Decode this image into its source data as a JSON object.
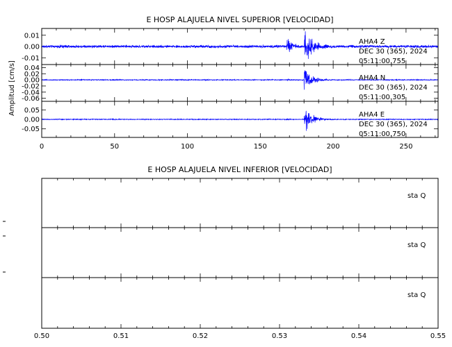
{
  "chart_data": [
    {
      "type": "line",
      "title": "E HOSP ALAJUELA NIVEL SUPERIOR [VELOCIDAD]",
      "ylabel": "Amplitud [cm/s]",
      "xlim": [
        0,
        272
      ],
      "x_ticks": [
        "0",
        "50",
        "100",
        "150",
        "200",
        "250"
      ],
      "x_tick_values": [
        0,
        50,
        100,
        150,
        200,
        250
      ],
      "series_color": "#0000ff",
      "panels": [
        {
          "channel": "AHA4   Z",
          "date": "DEC 30 (365), 2024",
          "time": "05:11:00.755",
          "ylim": [
            -0.016,
            0.016
          ],
          "y_ticks": [
            "0.01",
            "0.00",
            "-0.01"
          ],
          "y_tick_values": [
            0.01,
            0.0,
            -0.01
          ],
          "noise": 0.0008,
          "events": [
            {
              "t": 12,
              "amp": 0.001,
              "decay": 8
            },
            {
              "t": 168,
              "amp": 0.011,
              "decay": 3
            },
            {
              "t": 180,
              "amp": 0.016,
              "decay": 6
            }
          ]
        },
        {
          "channel": "AHA4   N",
          "date": "DEC 30 (365), 2024",
          "time": "05:11:00.305",
          "ylim": [
            -0.07,
            0.05
          ],
          "y_ticks": [
            "0.04",
            "0.02",
            "0.00",
            "-0.02",
            "-0.04",
            "-0.06"
          ],
          "y_tick_values": [
            0.04,
            0.02,
            0.0,
            -0.02,
            -0.04,
            -0.06
          ],
          "noise": 0.001,
          "events": [
            {
              "t": 168,
              "amp": 0.004,
              "decay": 3
            },
            {
              "t": 180,
              "amp": 0.045,
              "decay": 5
            }
          ]
        },
        {
          "channel": "AHA4   E",
          "date": "DEC 30 (365), 2024",
          "time": "05:11:00.750",
          "ylim": [
            -0.095,
            0.095
          ],
          "y_ticks": [
            "0.05",
            "0.00",
            "-0.05"
          ],
          "y_tick_values": [
            0.05,
            0.0,
            -0.05
          ],
          "noise": 0.0015,
          "events": [
            {
              "t": 168,
              "amp": 0.005,
              "decay": 3
            },
            {
              "t": 180,
              "amp": 0.09,
              "decay": 5
            }
          ]
        }
      ]
    },
    {
      "type": "line",
      "title": "E HOSP ALAJUELA NIVEL INFERIOR [VELOCIDAD]",
      "xlim": [
        0.5,
        0.55
      ],
      "x_ticks": [
        "0.50",
        "0.51",
        "0.52",
        "0.53",
        "0.54",
        "0.55"
      ],
      "x_tick_values": [
        0.5,
        0.51,
        0.52,
        0.53,
        0.54,
        0.55
      ],
      "panels": [
        {
          "label": "sta   Q"
        },
        {
          "label": "sta   Q"
        },
        {
          "label": "sta   Q"
        }
      ]
    }
  ]
}
